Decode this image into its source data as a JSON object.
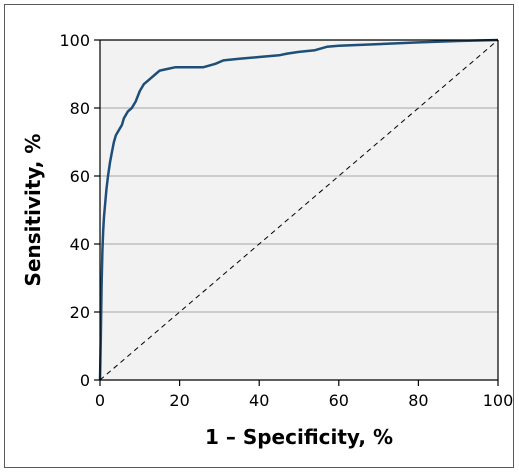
{
  "chart_data": {
    "type": "line",
    "title": "",
    "xlabel": "1 – Specificity, %",
    "ylabel": "Sensitivity, %",
    "xlim": [
      0,
      100
    ],
    "ylim": [
      0,
      100
    ],
    "x_ticks": [
      "0",
      "20",
      "40",
      "60",
      "80",
      "100"
    ],
    "y_ticks": [
      "0",
      "20",
      "40",
      "60",
      "80",
      "100"
    ],
    "grid": "horizontal",
    "legend": "none",
    "colors": {
      "plot_background": "#f2f2f2",
      "roc_line": "#1f4e79",
      "reference_line": "#000000",
      "grid": "#bfbfbf"
    },
    "series": [
      {
        "style": "solid",
        "x": [
          0,
          0.2,
          0.4,
          0.6,
          0.8,
          1,
          1.3,
          1.6,
          2,
          2.5,
          3,
          3.5,
          4,
          4.5,
          5,
          5.5,
          6,
          7,
          8,
          9,
          10,
          11,
          12,
          13,
          14,
          15,
          17,
          19,
          22,
          26,
          29,
          31,
          35,
          40,
          45,
          47,
          50,
          54,
          57,
          60,
          70,
          80,
          90,
          100
        ],
        "y": [
          0,
          12,
          28,
          38,
          44,
          48,
          52,
          56,
          60,
          64,
          67,
          70,
          72,
          73,
          74,
          75,
          77,
          79,
          80,
          82,
          85,
          87,
          88,
          89,
          90,
          91,
          91.5,
          92,
          92,
          92,
          93,
          94,
          94.5,
          95,
          95.5,
          96,
          96.5,
          97,
          98,
          98.3,
          98.8,
          99.3,
          99.7,
          100
        ]
      },
      {
        "style": "dashed",
        "x": [
          0,
          100
        ],
        "y": [
          0,
          100
        ]
      }
    ]
  }
}
